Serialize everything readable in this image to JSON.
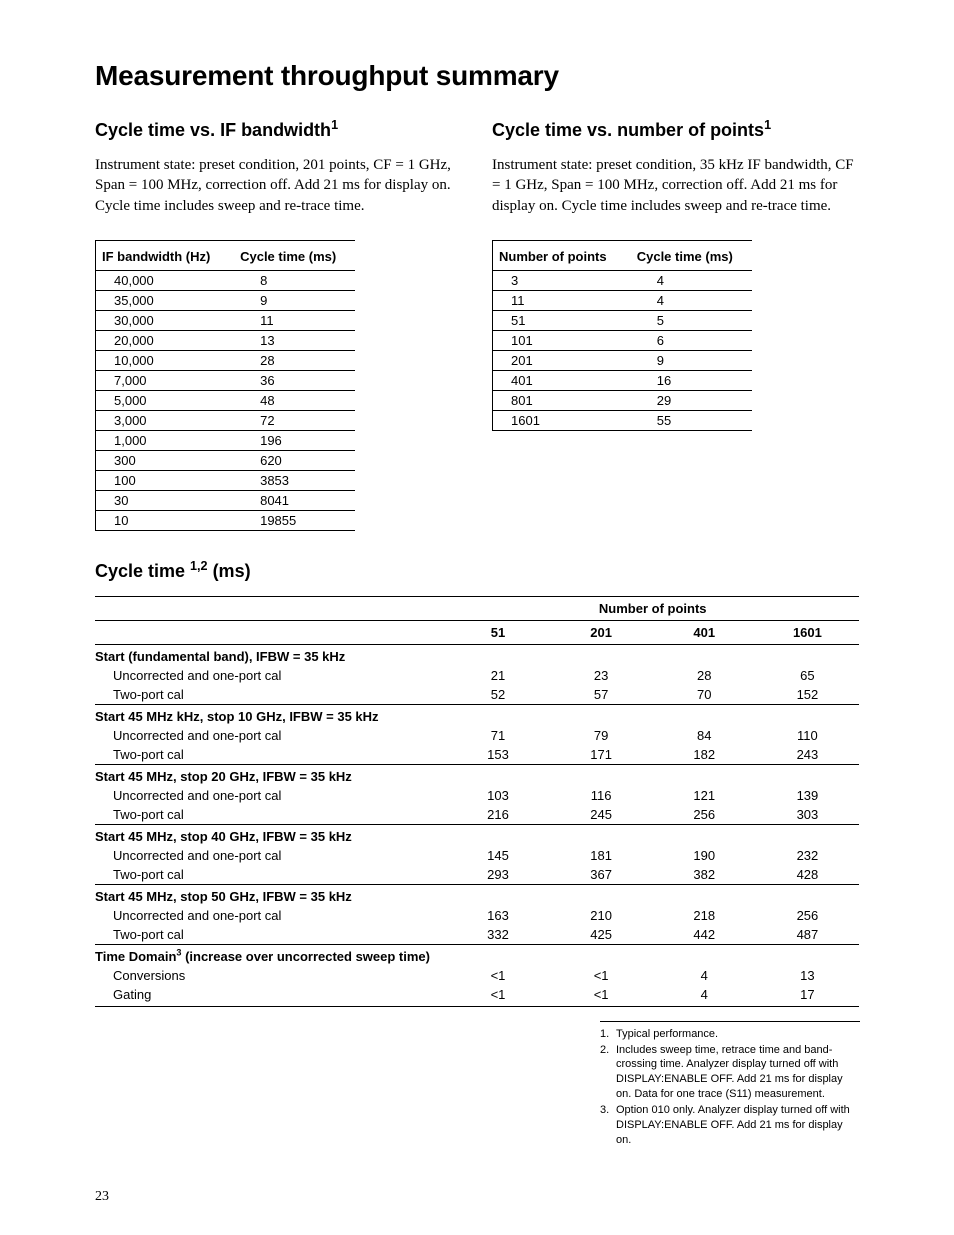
{
  "page": {
    "title": "Measurement throughput summary",
    "page_number": "23"
  },
  "section1": {
    "heading": "Cycle time vs. IF bandwidth",
    "heading_sup": "1",
    "intro": "Instrument state: preset condition, 201 points, CF = 1 GHz, Span = 100 MHz, correction off. Add 21 ms for display on. Cycle time includes sweep and re-trace time.",
    "col1": "IF bandwidth (Hz)",
    "col2": "Cycle time (ms)",
    "rows": [
      {
        "a": "40,000",
        "b": "8"
      },
      {
        "a": "35,000",
        "b": "9"
      },
      {
        "a": "30,000",
        "b": "11"
      },
      {
        "a": "20,000",
        "b": "13"
      },
      {
        "a": "10,000",
        "b": "28"
      },
      {
        "a": "7,000",
        "b": "36"
      },
      {
        "a": "5,000",
        "b": "48"
      },
      {
        "a": "3,000",
        "b": "72"
      },
      {
        "a": "1,000",
        "b": "196"
      },
      {
        "a": "300",
        "b": "620"
      },
      {
        "a": "100",
        "b": "3853"
      },
      {
        "a": "30",
        "b": "8041"
      },
      {
        "a": "10",
        "b": "19855"
      }
    ]
  },
  "section2": {
    "heading": "Cycle time vs. number of points",
    "heading_sup": "1",
    "intro": "Instrument state: preset condition, 35 kHz IF bandwidth, CF = 1 GHz, Span = 100 MHz, correction off. Add 21 ms for display on. Cycle time includes sweep and re-trace time.",
    "col1": "Number of points",
    "col2": "Cycle time (ms)",
    "rows": [
      {
        "a": "3",
        "b": "4"
      },
      {
        "a": "11",
        "b": "4"
      },
      {
        "a": "51",
        "b": "5"
      },
      {
        "a": "101",
        "b": "6"
      },
      {
        "a": "201",
        "b": "9"
      },
      {
        "a": "401",
        "b": "16"
      },
      {
        "a": "801",
        "b": "29"
      },
      {
        "a": "1601",
        "b": "55"
      }
    ]
  },
  "section3": {
    "heading_pre": "Cycle time ",
    "heading_sup": "1,2",
    "heading_post": " (ms)",
    "superhead": "Number of points",
    "cols": [
      "51",
      "201",
      "401",
      "1601"
    ],
    "groups": [
      {
        "label": "Start (fundamental band), IFBW = 35 kHz",
        "rows": [
          {
            "l": "Uncorrected and one-port cal",
            "v": [
              "21",
              "23",
              "28",
              "65"
            ]
          },
          {
            "l": "Two-port cal",
            "v": [
              "52",
              "57",
              "70",
              "152"
            ]
          }
        ]
      },
      {
        "label": "Start 45 MHz kHz, stop 10 GHz, IFBW = 35 kHz",
        "rows": [
          {
            "l": "Uncorrected and one-port cal",
            "v": [
              "71",
              "79",
              "84",
              "110"
            ]
          },
          {
            "l": "Two-port cal",
            "v": [
              "153",
              "171",
              "182",
              "243"
            ]
          }
        ]
      },
      {
        "label": "Start 45 MHz, stop 20 GHz, IFBW = 35 kHz",
        "rows": [
          {
            "l": "Uncorrected and one-port cal",
            "v": [
              "103",
              "116",
              "121",
              "139"
            ]
          },
          {
            "l": "Two-port cal",
            "v": [
              "216",
              "245",
              "256",
              "303"
            ]
          }
        ]
      },
      {
        "label": "Start 45 MHz, stop 40 GHz, IFBW = 35 kHz",
        "rows": [
          {
            "l": "Uncorrected and one-port cal",
            "v": [
              "145",
              "181",
              "190",
              "232"
            ]
          },
          {
            "l": "Two-port cal",
            "v": [
              "293",
              "367",
              "382",
              "428"
            ]
          }
        ]
      },
      {
        "label": "Start 45 MHz, stop 50 GHz, IFBW = 35 kHz",
        "rows": [
          {
            "l": "Uncorrected and one-port cal",
            "v": [
              "163",
              "210",
              "218",
              "256"
            ]
          },
          {
            "l": "Two-port cal",
            "v": [
              "332",
              "425",
              "442",
              "487"
            ]
          }
        ]
      },
      {
        "label_pre": "Time Domain",
        "label_sup": "3",
        "label_post": " (increase over uncorrected sweep time)",
        "rows": [
          {
            "l": "Conversions",
            "v": [
              "<1",
              "<1",
              "4",
              "13"
            ]
          },
          {
            "l": "Gating",
            "v": [
              "<1",
              "<1",
              "4",
              "17"
            ]
          }
        ]
      }
    ]
  },
  "footnotes": [
    {
      "n": "1.",
      "t": "Typical performance."
    },
    {
      "n": "2.",
      "t": "Includes sweep time, retrace time and band-crossing time. Analyzer display turned off with DISPLAY:ENABLE OFF. Add 21 ms for display on. Data for one trace (S11) measurement."
    },
    {
      "n": "3.",
      "t": "Option 010 only. Analyzer display turned off with DISPLAY:ENABLE OFF. Add 21 ms for display on."
    }
  ]
}
